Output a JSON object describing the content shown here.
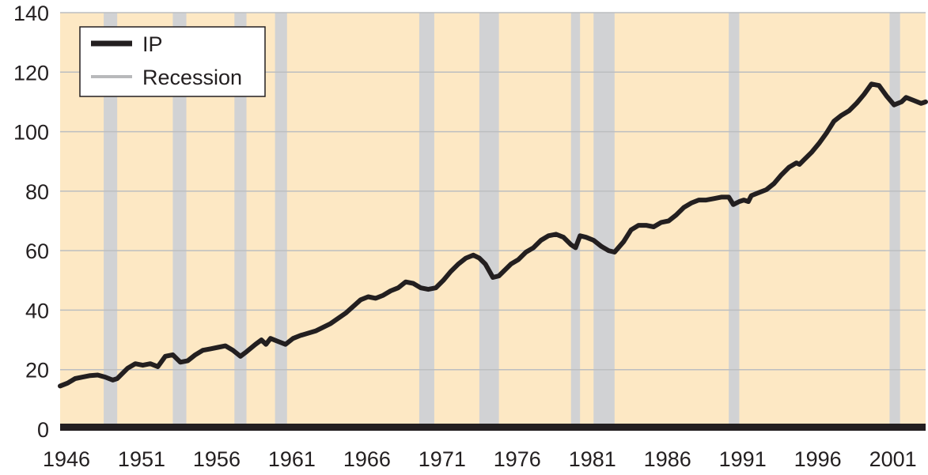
{
  "chart_data": {
    "type": "line",
    "title": "",
    "xlabel": "",
    "ylabel": "",
    "xlim": [
      1946,
      2003.6
    ],
    "ylim": [
      0,
      140
    ],
    "yticks": [
      0,
      20,
      40,
      60,
      80,
      100,
      120,
      140
    ],
    "xticks": [
      1946,
      1951,
      1956,
      1961,
      1966,
      1971,
      1976,
      1981,
      1986,
      1991,
      1996,
      2001
    ],
    "grid": true,
    "legend_position": "top-left",
    "colors": {
      "plot_background": "#fde8c4",
      "line": "#231f20",
      "recession": "#d1d2d4",
      "grid": "#bcbec0",
      "axis": "#231f20"
    },
    "legend": [
      {
        "label": "IP",
        "kind": "line"
      },
      {
        "label": "Recession",
        "kind": "band"
      }
    ],
    "recessions": [
      [
        1948.9,
        1949.8
      ],
      [
        1953.5,
        1954.4
      ],
      [
        1957.6,
        1958.4
      ],
      [
        1960.3,
        1961.1
      ],
      [
        1969.9,
        1970.9
      ],
      [
        1973.9,
        1975.2
      ],
      [
        1980.0,
        1980.6
      ],
      [
        1981.5,
        1982.9
      ],
      [
        1990.5,
        1991.2
      ],
      [
        2001.2,
        2001.9
      ]
    ],
    "series": [
      {
        "name": "IP",
        "x": [
          1946.0,
          1946.5,
          1947.0,
          1947.5,
          1948.0,
          1948.5,
          1949.0,
          1949.5,
          1949.8,
          1950.5,
          1951.0,
          1951.5,
          1952.0,
          1952.5,
          1953.0,
          1953.5,
          1954.0,
          1954.5,
          1955.0,
          1955.5,
          1956.0,
          1956.5,
          1957.0,
          1957.5,
          1958.0,
          1958.4,
          1959.0,
          1959.4,
          1959.7,
          1960.0,
          1960.5,
          1961.0,
          1961.5,
          1962.0,
          1963.0,
          1964.0,
          1965.0,
          1966.0,
          1966.5,
          1967.0,
          1967.5,
          1968.0,
          1968.5,
          1969.0,
          1969.5,
          1970.0,
          1970.5,
          1971.0,
          1971.5,
          1972.0,
          1972.5,
          1973.0,
          1973.5,
          1973.9,
          1974.3,
          1974.8,
          1975.2,
          1975.7,
          1976.0,
          1976.5,
          1977.0,
          1977.5,
          1978.0,
          1978.5,
          1979.0,
          1979.5,
          1980.0,
          1980.3,
          1980.6,
          1981.0,
          1981.5,
          1982.0,
          1982.5,
          1982.9,
          1983.5,
          1984.0,
          1984.5,
          1985.0,
          1985.5,
          1986.0,
          1986.5,
          1987.0,
          1987.5,
          1988.0,
          1988.5,
          1989.0,
          1989.5,
          1990.0,
          1990.5,
          1990.8,
          1991.2,
          1991.5,
          1991.8,
          1992.0,
          1992.5,
          1993.0,
          1993.5,
          1994.0,
          1994.5,
          1995.0,
          1995.2,
          1995.5,
          1996.0,
          1996.5,
          1997.0,
          1997.5,
          1998.0,
          1998.5,
          1999.0,
          1999.5,
          2000.0,
          2000.5,
          2001.0,
          2001.5,
          2002.0,
          2002.3,
          2002.8,
          2003.3,
          2003.6
        ],
        "values": [
          14.5,
          15.5,
          17.0,
          17.5,
          18.0,
          18.2,
          17.5,
          16.5,
          17.0,
          20.5,
          22.0,
          21.5,
          22.0,
          21.0,
          24.5,
          25.0,
          22.5,
          23.0,
          25.0,
          26.5,
          27.0,
          27.5,
          28.0,
          26.5,
          24.5,
          26.0,
          28.5,
          30.0,
          28.5,
          30.5,
          29.5,
          28.5,
          30.5,
          31.5,
          33.0,
          35.5,
          39.0,
          43.5,
          44.5,
          44.0,
          45.0,
          46.5,
          47.5,
          49.5,
          49.0,
          47.5,
          47.0,
          47.5,
          50.0,
          53.0,
          55.5,
          57.5,
          58.5,
          57.5,
          55.5,
          51.0,
          51.5,
          54.0,
          55.5,
          57.0,
          59.5,
          61.0,
          63.5,
          65.0,
          65.5,
          64.5,
          62.0,
          61.0,
          65.0,
          64.5,
          63.5,
          61.5,
          60.0,
          59.5,
          63.0,
          67.0,
          68.5,
          68.5,
          68.0,
          69.5,
          70.0,
          72.0,
          74.5,
          76.0,
          77.0,
          77.0,
          77.5,
          78.0,
          78.0,
          75.5,
          76.5,
          77.0,
          76.5,
          78.5,
          79.5,
          80.5,
          82.5,
          85.5,
          88.0,
          89.5,
          89.0,
          90.5,
          93.0,
          96.0,
          99.5,
          103.5,
          105.5,
          107.0,
          109.5,
          112.5,
          116.0,
          115.5,
          112.0,
          109.0,
          110.0,
          111.5,
          110.5,
          109.5,
          110.0
        ]
      }
    ]
  }
}
